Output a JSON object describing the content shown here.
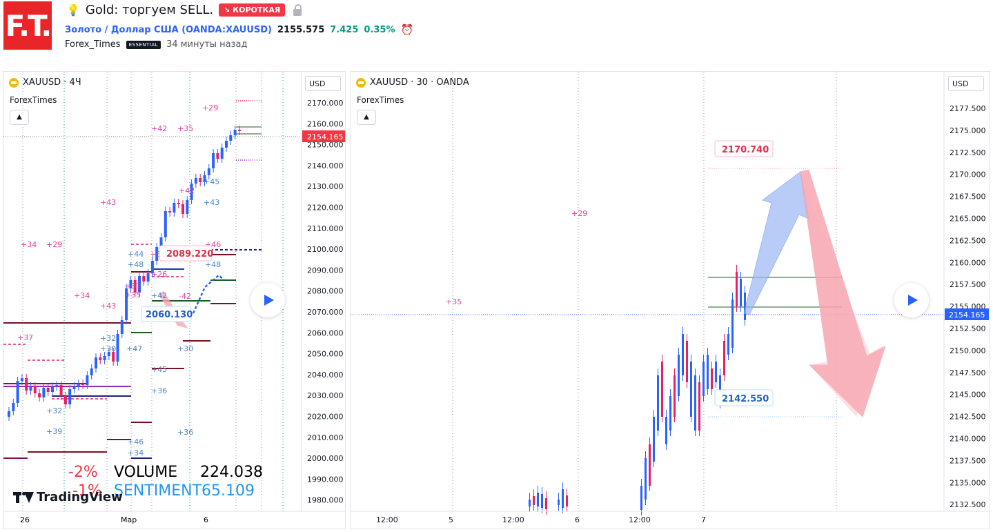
{
  "header": {
    "logo_text": "F.T.",
    "idea_title": "Gold: торгуем SELL.",
    "direction_badge": "↘ КОРОТКАЯ",
    "symbol_link": "Золото / Доллар США (OANDA:XAUUSD)",
    "last_price": "2155.575",
    "change": "7.425",
    "change_pct": "0.35%",
    "author": "Forex_Times",
    "author_badge": "ESSENTIAL",
    "published": "34 минуты назад"
  },
  "left_chart": {
    "title": "XAUUSD · 4Ч",
    "indicator": "ForexTimes",
    "currency": "USD",
    "y_ticks": [
      "2170.000",
      "2160.000",
      "2150.000",
      "2140.000",
      "2130.000",
      "2120.000",
      "2110.000",
      "2100.000",
      "2090.000",
      "2080.000",
      "2070.000",
      "2060.000",
      "2050.000",
      "2040.000",
      "2030.000",
      "2020.000",
      "2010.000",
      "2000.000",
      "1990.000",
      "1980.000"
    ],
    "x_ticks": [
      "26",
      "Мар",
      "6"
    ],
    "price_tag": "2154.165",
    "label_up": "2089.220",
    "label_down": "2060.130",
    "stats": {
      "pct1": "-2%",
      "pct2": "-1%",
      "volume_label": "VOLUME",
      "volume_value": "224.038",
      "sentiment_label": "SENTIMENT",
      "sentiment_value": "65.109"
    },
    "brand": "TradingView",
    "markers_pink": [
      "+29",
      "+42",
      "+35",
      "+43",
      "+42",
      "+34",
      "+29",
      "+34",
      "+43",
      "+37",
      "+37",
      "+35",
      "+5",
      "+26",
      "-42",
      "+46"
    ],
    "markers_blue": [
      "+45",
      "+43",
      "+44",
      "+48",
      "+42",
      "+48",
      "+32",
      "+30",
      "+47",
      "+30",
      "+45",
      "+36",
      "+32",
      "+39",
      "+36",
      "+46",
      "+34"
    ]
  },
  "right_chart": {
    "title": "XAUUSD · 30 · OANDA",
    "indicator": "ForexTimes",
    "currency": "USD",
    "y_ticks": [
      "2177.500",
      "2175.000",
      "2172.500",
      "2170.000",
      "2167.500",
      "2165.000",
      "2162.500",
      "2160.000",
      "2157.500",
      "2155.000",
      "2152.500",
      "2150.000",
      "2147.500",
      "2145.000",
      "2142.500",
      "2140.000",
      "2137.500",
      "2135.000",
      "2132.500"
    ],
    "x_ticks": [
      "12:00",
      "5",
      "12:00",
      "6",
      "12:00",
      "7"
    ],
    "price_tag": "2154.165",
    "label_target_high": "2170.740",
    "label_target_low": "2142.550",
    "markers": [
      "+29",
      "+35"
    ]
  },
  "colors": {
    "bull": "#089981",
    "bear": "#f23645",
    "candle_up": "#2962ff",
    "candle_down": "#e91e63",
    "accent": "#2962ff"
  }
}
